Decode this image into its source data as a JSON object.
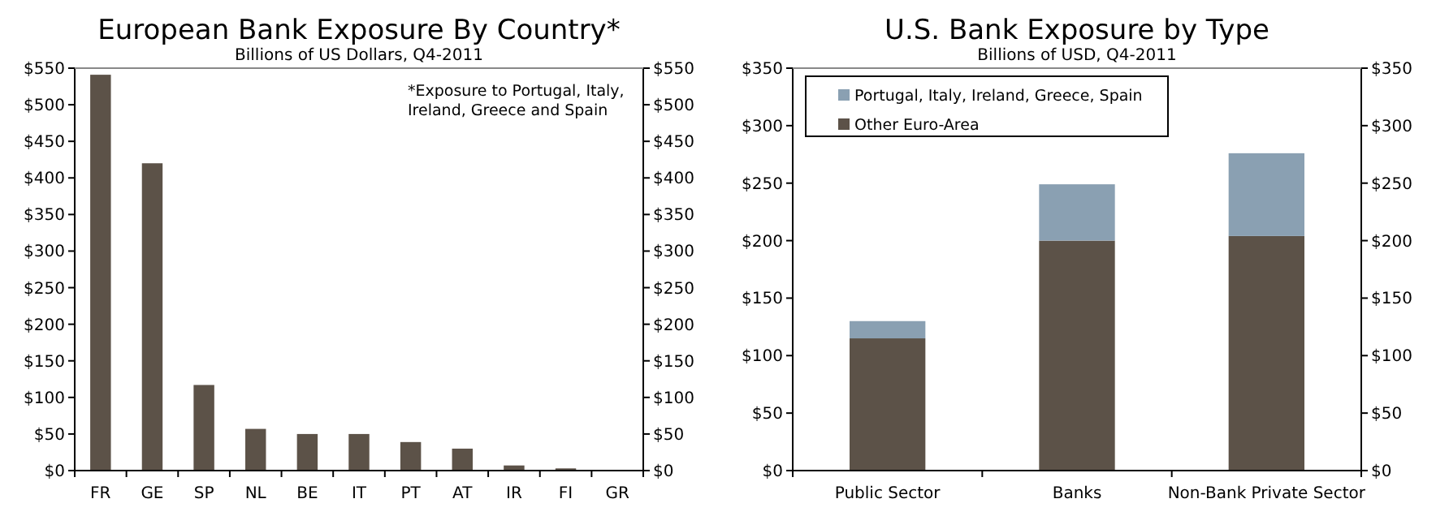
{
  "chart_data": [
    {
      "type": "bar",
      "title": "European Bank Exposure By Country*",
      "subtitle": "Billions of US Dollars, Q4-2011",
      "categories": [
        "FR",
        "GE",
        "SP",
        "NL",
        "BE",
        "IT",
        "PT",
        "AT",
        "IR",
        "FI",
        "GR"
      ],
      "values": [
        541,
        420,
        117,
        57,
        50,
        50,
        39,
        30,
        7,
        3,
        0
      ],
      "color": "#5c5248",
      "ylim": [
        0,
        550
      ],
      "yticks": [
        {
          "value": 0,
          "label": "$0"
        },
        {
          "value": 50,
          "label": "$50"
        },
        {
          "value": 100,
          "label": "$100"
        },
        {
          "value": 150,
          "label": "$150"
        },
        {
          "value": 200,
          "label": "$200"
        },
        {
          "value": 250,
          "label": "$250"
        },
        {
          "value": 300,
          "label": "$300"
        },
        {
          "value": 350,
          "label": "$350"
        },
        {
          "value": 400,
          "label": "$400"
        },
        {
          "value": 450,
          "label": "$450"
        },
        {
          "value": 500,
          "label": "$500"
        },
        {
          "value": 550,
          "label": "$550"
        }
      ],
      "y2lim": [
        0,
        550
      ],
      "y2ticks": [
        {
          "value": 0,
          "label": "$0"
        },
        {
          "value": 50,
          "label": "$50"
        },
        {
          "value": 100,
          "label": "$100"
        },
        {
          "value": 150,
          "label": "$150"
        },
        {
          "value": 200,
          "label": "$200"
        },
        {
          "value": 250,
          "label": "$250"
        },
        {
          "value": 300,
          "label": "$300"
        },
        {
          "value": 350,
          "label": "$350"
        },
        {
          "value": 400,
          "label": "$400"
        },
        {
          "value": 450,
          "label": "$450"
        },
        {
          "value": 500,
          "label": "$500"
        },
        {
          "value": 550,
          "label": "$550"
        }
      ],
      "annotations": [
        "*Exposure to Portugal, Italy,\nIreland, Greece and Spain"
      ],
      "grid": false,
      "legend": false
    },
    {
      "type": "bar",
      "title": "U.S. Bank Exposure by Type",
      "subtitle": "Billions of USD, Q4-2011",
      "categories": [
        "Public Sector",
        "Banks",
        "Non-Bank Private Sector"
      ],
      "stacked": true,
      "series": [
        {
          "name": "Other Euro-Area",
          "color": "#5c5248",
          "values": [
            115,
            200,
            204
          ]
        },
        {
          "name": "Portugal, Italy, Ireland, Greece, Spain",
          "color": "#8aa0b2",
          "values": [
            15,
            49,
            72
          ]
        }
      ],
      "ylim": [
        0,
        350
      ],
      "yticks": [
        {
          "value": 0,
          "label": "$0"
        },
        {
          "value": 50,
          "label": "$50"
        },
        {
          "value": 100,
          "label": "$100"
        },
        {
          "value": 150,
          "label": "$150"
        },
        {
          "value": 200,
          "label": "$200"
        },
        {
          "value": 250,
          "label": "$250"
        },
        {
          "value": 300,
          "label": "$300"
        },
        {
          "value": 350,
          "label": "$350"
        }
      ],
      "y2lim": [
        0,
        350
      ],
      "y2ticks": [
        {
          "value": 0,
          "label": "$0"
        },
        {
          "value": 50,
          "label": "$50"
        },
        {
          "value": 100,
          "label": "$100"
        },
        {
          "value": 150,
          "label": "$150"
        },
        {
          "value": 200,
          "label": "$200"
        },
        {
          "value": 250,
          "label": "$250"
        },
        {
          "value": 300,
          "label": "$300"
        },
        {
          "value": 350,
          "label": "$350"
        }
      ],
      "grid": false,
      "legend": "top left"
    }
  ]
}
